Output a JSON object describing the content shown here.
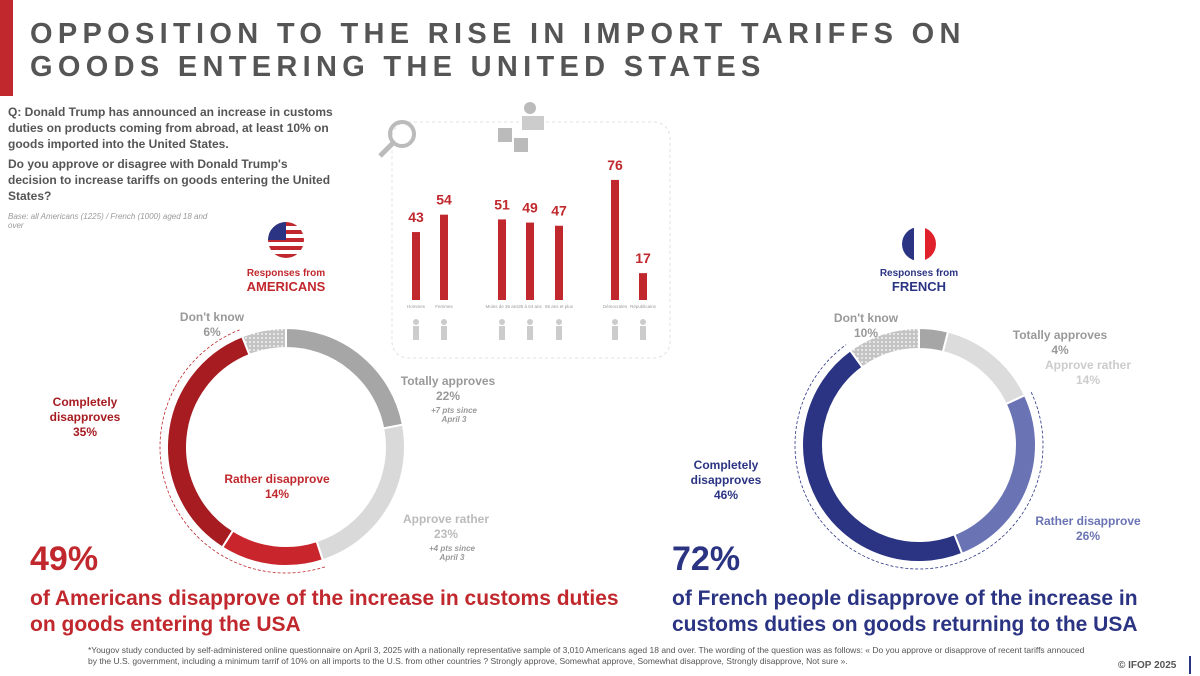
{
  "header": {
    "title_line1": "OPPOSITION TO THE RISE IN IMPORT TARIFFS ON",
    "title_line2": "GOODS ENTERING THE UNITED STATES"
  },
  "question": {
    "q1": "Q: Donald Trump has announced an increase in customs duties on products coming from abroad, at least 10% on goods imported into the United States.",
    "q2": "Do you approve or disagree with Donald Trump's decision to increase tariffs on goods entering the United States?",
    "base": "Base: all Americans (1225) / French (1000) aged 18 and over"
  },
  "chart_data": [
    {
      "type": "donut",
      "subtitle": "Responses from",
      "title": "AMERICANS",
      "categories": [
        "Totally approves",
        "Approve rather",
        "Rather disapprove",
        "Completely disapproves",
        "Don't know"
      ],
      "values": [
        22,
        23,
        14,
        35,
        6
      ],
      "value_labels": [
        "22%",
        "23%",
        "14%",
        "35%",
        "6%"
      ],
      "colors": [
        "#a6a6a6",
        "#d9d9d9",
        "#c8262c",
        "#a61c21",
        "#d0d0d0"
      ],
      "dotted": [
        false,
        false,
        false,
        false,
        true
      ],
      "notes": [
        "+7 pts since April 3",
        "+4 pts since April 3",
        null,
        null,
        null
      ],
      "highlight": {
        "figure": "49%",
        "text": "of Americans disapprove of the increase in customs duties on goods entering the USA"
      }
    },
    {
      "type": "donut",
      "subtitle": "Responses from",
      "title": "FRENCH",
      "categories": [
        "Totally approves",
        "Approve rather",
        "Rather disapprove",
        "Completely disapproves",
        "Don't know"
      ],
      "values": [
        4,
        14,
        26,
        46,
        10
      ],
      "value_labels": [
        "4%",
        "14%",
        "26%",
        "46%",
        "10%"
      ],
      "colors": [
        "#a6a6a6",
        "#dcdcdc",
        "#6a74b4",
        "#2b3483",
        "#b8b8b8"
      ],
      "dotted": [
        false,
        false,
        false,
        false,
        true
      ],
      "notes": [
        null,
        null,
        null,
        null,
        null
      ],
      "highlight": {
        "figure": "72%",
        "text": "of French people disapprove of the increase in customs duties on goods returning to the USA"
      }
    },
    {
      "type": "bar",
      "categories": [
        "Hommes",
        "Femmes",
        "Moins de 35 ans",
        "35 à 64 ans",
        "65 ans et plus",
        "Démocrates",
        "Républicains"
      ],
      "values": [
        43,
        54,
        51,
        49,
        47,
        76,
        17
      ],
      "color": "#c0282d"
    }
  ],
  "footnote": "*Yougov study conducted by self-administered online questionnaire on April 3, 2025 with a nationally representative sample of 3,010 Americans aged 18 and over. The wording of the question was as follows: « Do you approve or disapprove of recent tariffs annouced by the U.S. government, including a minimum tarrif of 10% on all imports to the U.S. from other countries ? Strongly approve, Somewhat approve, Somewhat disapprove, Strongly disapprove, Not sure ».",
  "copyright": "© IFOP 2025"
}
